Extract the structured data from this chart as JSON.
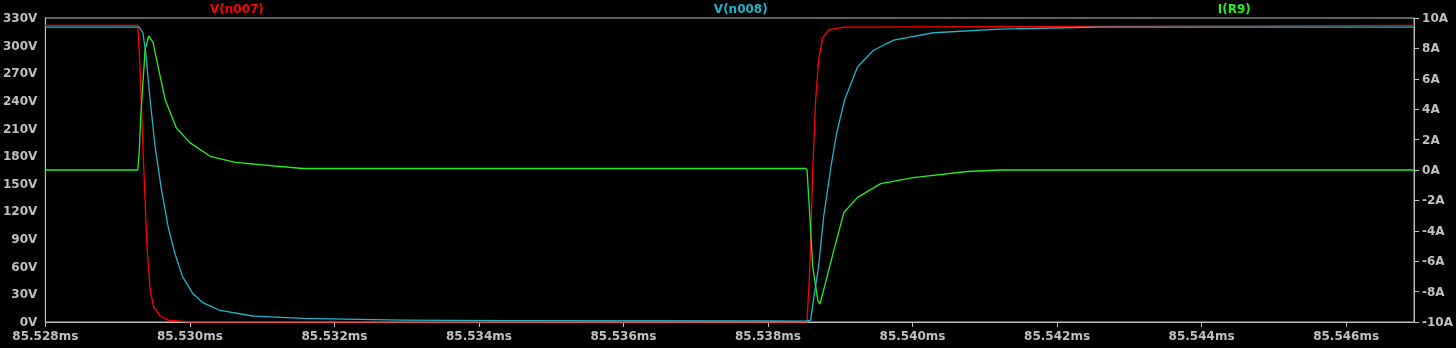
{
  "chart_data": {
    "type": "line",
    "legend": "top",
    "grid": false,
    "marker": "none",
    "line_style": "solid",
    "xlim": [
      85.528,
      85.54694
    ],
    "xticks": [
      {
        "value": 85.528,
        "label": "85.528ms"
      },
      {
        "value": 85.53,
        "label": "85.530ms"
      },
      {
        "value": 85.532,
        "label": "85.532ms"
      },
      {
        "value": 85.534,
        "label": "85.534ms"
      },
      {
        "value": 85.536,
        "label": "85.536ms"
      },
      {
        "value": 85.538,
        "label": "85.538ms"
      },
      {
        "value": 85.54,
        "label": "85.540ms"
      },
      {
        "value": 85.542,
        "label": "85.542ms"
      },
      {
        "value": 85.544,
        "label": "85.544ms"
      },
      {
        "value": 85.546,
        "label": "85.546ms"
      }
    ],
    "ylim": [
      0,
      330
    ],
    "yticks": [
      {
        "value": 0,
        "label": "0V"
      },
      {
        "value": 30,
        "label": "30V"
      },
      {
        "value": 60,
        "label": "60V"
      },
      {
        "value": 90,
        "label": "90V"
      },
      {
        "value": 120,
        "label": "120V"
      },
      {
        "value": 150,
        "label": "150V"
      },
      {
        "value": 180,
        "label": "180V"
      },
      {
        "value": 210,
        "label": "210V"
      },
      {
        "value": 240,
        "label": "240V"
      },
      {
        "value": 270,
        "label": "270V"
      },
      {
        "value": 300,
        "label": "300V"
      },
      {
        "value": 330,
        "label": "330V"
      }
    ],
    "y2lim": [
      -10,
      10
    ],
    "y2ticks": [
      {
        "value": -10,
        "label": "-10A"
      },
      {
        "value": -8,
        "label": "-8A"
      },
      {
        "value": -6,
        "label": "-6A"
      },
      {
        "value": -4,
        "label": "-4A"
      },
      {
        "value": -2,
        "label": "-2A"
      },
      {
        "value": 0,
        "label": "0A"
      },
      {
        "value": 2,
        "label": "2A"
      },
      {
        "value": 4,
        "label": "4A"
      },
      {
        "value": 6,
        "label": "6A"
      },
      {
        "value": 8,
        "label": "8A"
      },
      {
        "value": 10,
        "label": "10A"
      }
    ],
    "series": [
      {
        "name": "V(n007)",
        "color": "#ff0000",
        "x": [
          85.528,
          85.52928,
          85.52931,
          85.52935,
          85.52938,
          85.52941,
          85.52945,
          85.5295,
          85.52959,
          85.5297,
          85.53,
          85.53852,
          85.53854,
          85.53858,
          85.53862,
          85.53866,
          85.5387,
          85.53876,
          85.53884,
          85.53905,
          85.54694
        ],
        "values": [
          322,
          322,
          277,
          190,
          132,
          78,
          35,
          16,
          6.5,
          2,
          0,
          0,
          0,
          60,
          168,
          241,
          284,
          309,
          317,
          320,
          322
        ]
      },
      {
        "name": "V(n008)",
        "color": "#20b4c8",
        "x": [
          85.528,
          85.5293,
          85.52935,
          85.52939,
          85.52945,
          85.52952,
          85.5296,
          85.5297,
          85.52979,
          85.5299,
          85.53004,
          85.53018,
          85.5304,
          85.53087,
          85.53156,
          85.53294,
          85.53432,
          85.53852,
          85.53859,
          85.53863,
          85.5387,
          85.53877,
          85.53887,
          85.53895,
          85.53906,
          85.53924,
          85.53946,
          85.53974,
          85.54029,
          85.54121,
          85.54259,
          85.54694
        ],
        "values": [
          320,
          320,
          314,
          292,
          241,
          190,
          147,
          103,
          75,
          49,
          31,
          21,
          13,
          6.5,
          4,
          2,
          1.5,
          1,
          2,
          24,
          60,
          114,
          168,
          205,
          241,
          277,
          295,
          306,
          314,
          318,
          320,
          320
        ]
      },
      {
        "name": "I(R9)",
        "color": "#22ee22",
        "axis": "y2",
        "x": [
          85.528,
          85.52928,
          85.5293,
          85.52932,
          85.52935,
          85.52938,
          85.52943,
          85.52949,
          85.52956,
          85.52966,
          85.52981,
          85.53,
          85.53028,
          85.53063,
          85.53156,
          85.53852,
          85.53854,
          85.53858,
          85.53862,
          85.53869,
          85.53872,
          85.53877,
          85.53891,
          85.53905,
          85.53924,
          85.53956,
          85.54001,
          85.54076,
          85.54121,
          85.54694
        ],
        "values": [
          0,
          0,
          1.3,
          3.5,
          5.7,
          7.9,
          8.8,
          8.4,
          6.8,
          4.6,
          2.8,
          1.8,
          0.9,
          0.5,
          0.1,
          0.1,
          0,
          -3.1,
          -6.4,
          -8.6,
          -8.8,
          -7.9,
          -5.3,
          -2.8,
          -1.8,
          -0.9,
          -0.5,
          -0.1,
          0,
          0
        ]
      }
    ]
  }
}
